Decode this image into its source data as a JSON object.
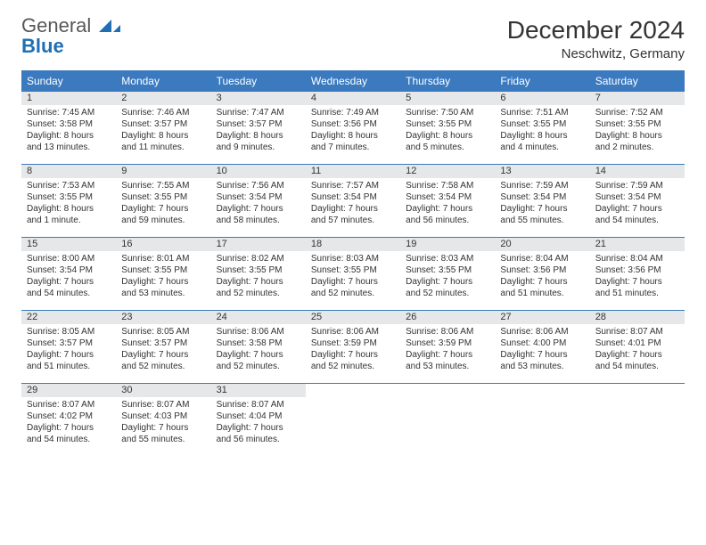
{
  "brand": {
    "word1": "General",
    "word2": "Blue",
    "word1_color": "#56585a",
    "word2_color": "#1f6fb2",
    "icon_color": "#1f6fb2"
  },
  "header": {
    "title": "December 2024",
    "location": "Neschwitz, Germany"
  },
  "colors": {
    "header_row_bg": "#3b7abf",
    "header_row_text": "#ffffff",
    "daynum_bg": "#e6e7e8",
    "week_divider": "#3b7abf",
    "text": "#333333",
    "page_bg": "#ffffff"
  },
  "layout": {
    "columns": 7,
    "rows": 5,
    "header_fontsize": 12,
    "cell_fontsize": 10,
    "title_fontsize": 28,
    "location_fontsize": 15
  },
  "weekdays": [
    "Sunday",
    "Monday",
    "Tuesday",
    "Wednesday",
    "Thursday",
    "Friday",
    "Saturday"
  ],
  "weeks": [
    [
      {
        "n": "1",
        "sunrise": "7:45 AM",
        "sunset": "3:58 PM",
        "daylight": "8 hours and 13 minutes."
      },
      {
        "n": "2",
        "sunrise": "7:46 AM",
        "sunset": "3:57 PM",
        "daylight": "8 hours and 11 minutes."
      },
      {
        "n": "3",
        "sunrise": "7:47 AM",
        "sunset": "3:57 PM",
        "daylight": "8 hours and 9 minutes."
      },
      {
        "n": "4",
        "sunrise": "7:49 AM",
        "sunset": "3:56 PM",
        "daylight": "8 hours and 7 minutes."
      },
      {
        "n": "5",
        "sunrise": "7:50 AM",
        "sunset": "3:55 PM",
        "daylight": "8 hours and 5 minutes."
      },
      {
        "n": "6",
        "sunrise": "7:51 AM",
        "sunset": "3:55 PM",
        "daylight": "8 hours and 4 minutes."
      },
      {
        "n": "7",
        "sunrise": "7:52 AM",
        "sunset": "3:55 PM",
        "daylight": "8 hours and 2 minutes."
      }
    ],
    [
      {
        "n": "8",
        "sunrise": "7:53 AM",
        "sunset": "3:55 PM",
        "daylight": "8 hours and 1 minute."
      },
      {
        "n": "9",
        "sunrise": "7:55 AM",
        "sunset": "3:55 PM",
        "daylight": "7 hours and 59 minutes."
      },
      {
        "n": "10",
        "sunrise": "7:56 AM",
        "sunset": "3:54 PM",
        "daylight": "7 hours and 58 minutes."
      },
      {
        "n": "11",
        "sunrise": "7:57 AM",
        "sunset": "3:54 PM",
        "daylight": "7 hours and 57 minutes."
      },
      {
        "n": "12",
        "sunrise": "7:58 AM",
        "sunset": "3:54 PM",
        "daylight": "7 hours and 56 minutes."
      },
      {
        "n": "13",
        "sunrise": "7:59 AM",
        "sunset": "3:54 PM",
        "daylight": "7 hours and 55 minutes."
      },
      {
        "n": "14",
        "sunrise": "7:59 AM",
        "sunset": "3:54 PM",
        "daylight": "7 hours and 54 minutes."
      }
    ],
    [
      {
        "n": "15",
        "sunrise": "8:00 AM",
        "sunset": "3:54 PM",
        "daylight": "7 hours and 54 minutes."
      },
      {
        "n": "16",
        "sunrise": "8:01 AM",
        "sunset": "3:55 PM",
        "daylight": "7 hours and 53 minutes."
      },
      {
        "n": "17",
        "sunrise": "8:02 AM",
        "sunset": "3:55 PM",
        "daylight": "7 hours and 52 minutes."
      },
      {
        "n": "18",
        "sunrise": "8:03 AM",
        "sunset": "3:55 PM",
        "daylight": "7 hours and 52 minutes."
      },
      {
        "n": "19",
        "sunrise": "8:03 AM",
        "sunset": "3:55 PM",
        "daylight": "7 hours and 52 minutes."
      },
      {
        "n": "20",
        "sunrise": "8:04 AM",
        "sunset": "3:56 PM",
        "daylight": "7 hours and 51 minutes."
      },
      {
        "n": "21",
        "sunrise": "8:04 AM",
        "sunset": "3:56 PM",
        "daylight": "7 hours and 51 minutes."
      }
    ],
    [
      {
        "n": "22",
        "sunrise": "8:05 AM",
        "sunset": "3:57 PM",
        "daylight": "7 hours and 51 minutes."
      },
      {
        "n": "23",
        "sunrise": "8:05 AM",
        "sunset": "3:57 PM",
        "daylight": "7 hours and 52 minutes."
      },
      {
        "n": "24",
        "sunrise": "8:06 AM",
        "sunset": "3:58 PM",
        "daylight": "7 hours and 52 minutes."
      },
      {
        "n": "25",
        "sunrise": "8:06 AM",
        "sunset": "3:59 PM",
        "daylight": "7 hours and 52 minutes."
      },
      {
        "n": "26",
        "sunrise": "8:06 AM",
        "sunset": "3:59 PM",
        "daylight": "7 hours and 53 minutes."
      },
      {
        "n": "27",
        "sunrise": "8:06 AM",
        "sunset": "4:00 PM",
        "daylight": "7 hours and 53 minutes."
      },
      {
        "n": "28",
        "sunrise": "8:07 AM",
        "sunset": "4:01 PM",
        "daylight": "7 hours and 54 minutes."
      }
    ],
    [
      {
        "n": "29",
        "sunrise": "8:07 AM",
        "sunset": "4:02 PM",
        "daylight": "7 hours and 54 minutes."
      },
      {
        "n": "30",
        "sunrise": "8:07 AM",
        "sunset": "4:03 PM",
        "daylight": "7 hours and 55 minutes."
      },
      {
        "n": "31",
        "sunrise": "8:07 AM",
        "sunset": "4:04 PM",
        "daylight": "7 hours and 56 minutes."
      },
      null,
      null,
      null,
      null
    ]
  ],
  "labels": {
    "sunrise_prefix": "Sunrise: ",
    "sunset_prefix": "Sunset: ",
    "daylight_prefix": "Daylight: "
  }
}
